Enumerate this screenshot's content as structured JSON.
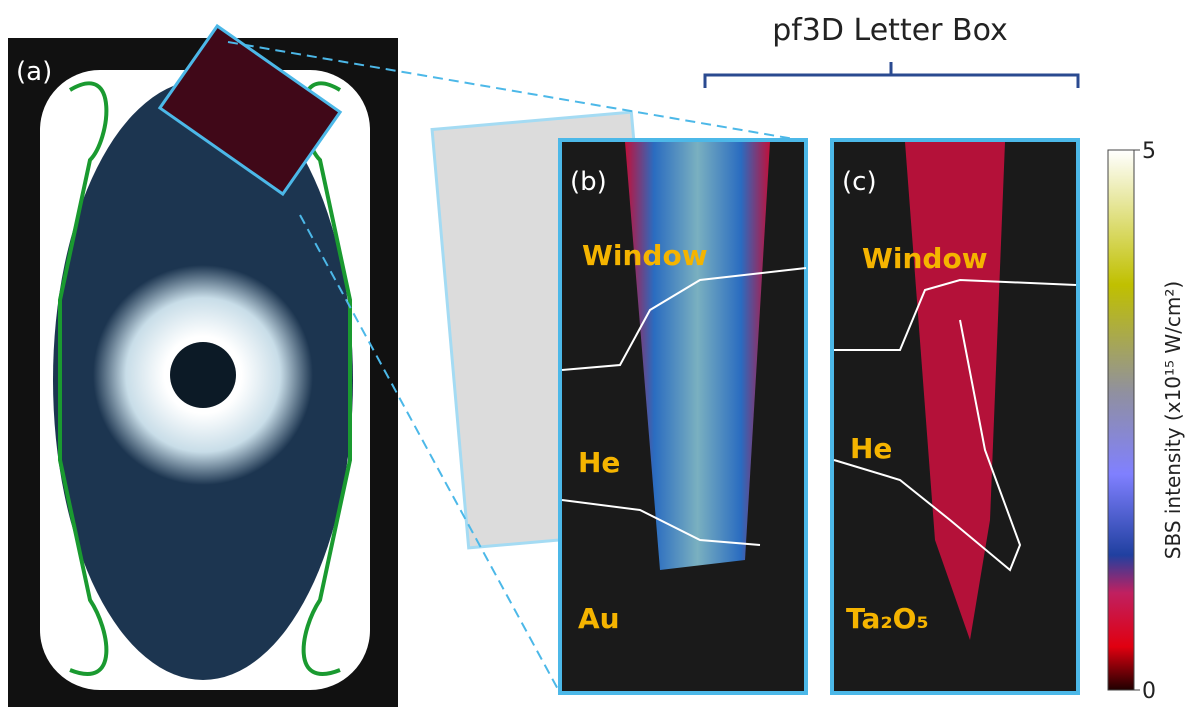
{
  "figure": {
    "title": "pf3D Letter Box",
    "panels": [
      {
        "label": "(a)"
      },
      {
        "label": "(b)",
        "regions": [
          "Window",
          "He",
          "Au"
        ]
      },
      {
        "label": "(c)",
        "regions": [
          "Window",
          "He",
          "Ta₂O₅"
        ]
      }
    ],
    "colorbar": {
      "label": "SBS intensity (x10¹⁵ W/cm²)",
      "ticks": [
        0,
        5
      ]
    }
  }
}
